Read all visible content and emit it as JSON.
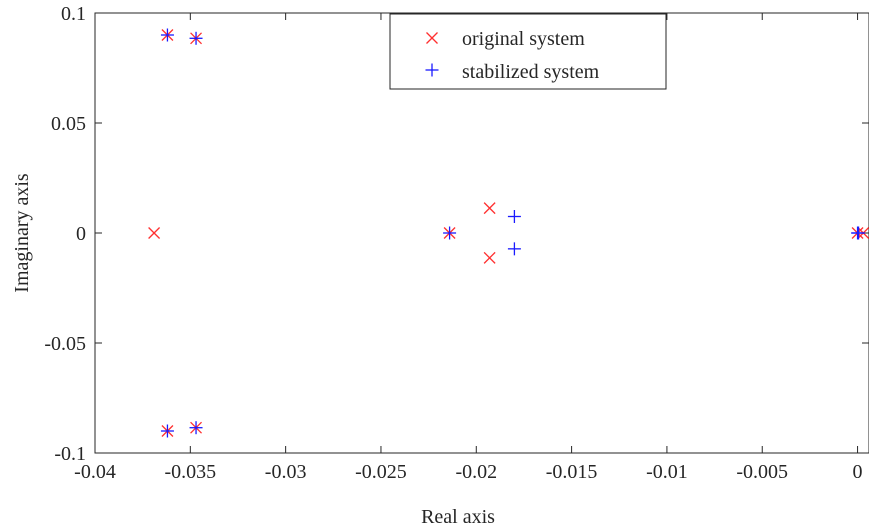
{
  "chart_data": {
    "type": "scatter",
    "xlabel": "Real axis",
    "ylabel": "Imaginary axis",
    "xlim": [
      -0.04,
      0.0006
    ],
    "ylim": [
      -0.1,
      0.1
    ],
    "x_ticks": [
      -0.04,
      -0.035,
      -0.03,
      -0.025,
      -0.02,
      -0.015,
      -0.01,
      -0.005,
      0
    ],
    "x_tick_labels": [
      "-0.04",
      "-0.035",
      "-0.03",
      "-0.025",
      "-0.02",
      "-0.015",
      "-0.01",
      "-0.005",
      "0"
    ],
    "y_ticks": [
      -0.1,
      -0.05,
      0,
      0.05,
      0.1
    ],
    "y_tick_labels": [
      "-0.1",
      "-0.05",
      "0",
      "0.05",
      "0.1"
    ],
    "grid": false,
    "legend_position": "top-center",
    "series": [
      {
        "name": "original system",
        "marker": "x",
        "color": "#ff3030",
        "points": [
          [
            -0.0362,
            0.09
          ],
          [
            -0.0347,
            0.0885
          ],
          [
            -0.0362,
            -0.09
          ],
          [
            -0.0347,
            -0.0885
          ],
          [
            -0.0369,
            0.0
          ],
          [
            -0.0214,
            0.0
          ],
          [
            -0.0193,
            0.0113
          ],
          [
            -0.0193,
            -0.0113
          ],
          [
            0.0,
            0.0
          ],
          [
            0.0003,
            0.0
          ]
        ]
      },
      {
        "name": "stabilized system",
        "marker": "+",
        "color": "#1a1aff",
        "points": [
          [
            -0.0362,
            0.09
          ],
          [
            -0.0347,
            0.0885
          ],
          [
            -0.0362,
            -0.09
          ],
          [
            -0.0347,
            -0.0885
          ],
          [
            -0.0214,
            0.0
          ],
          [
            -0.018,
            0.0075
          ],
          [
            -0.018,
            -0.0072
          ],
          [
            0.0,
            0.0
          ],
          [
            5e-05,
            0.0
          ]
        ]
      }
    ]
  }
}
